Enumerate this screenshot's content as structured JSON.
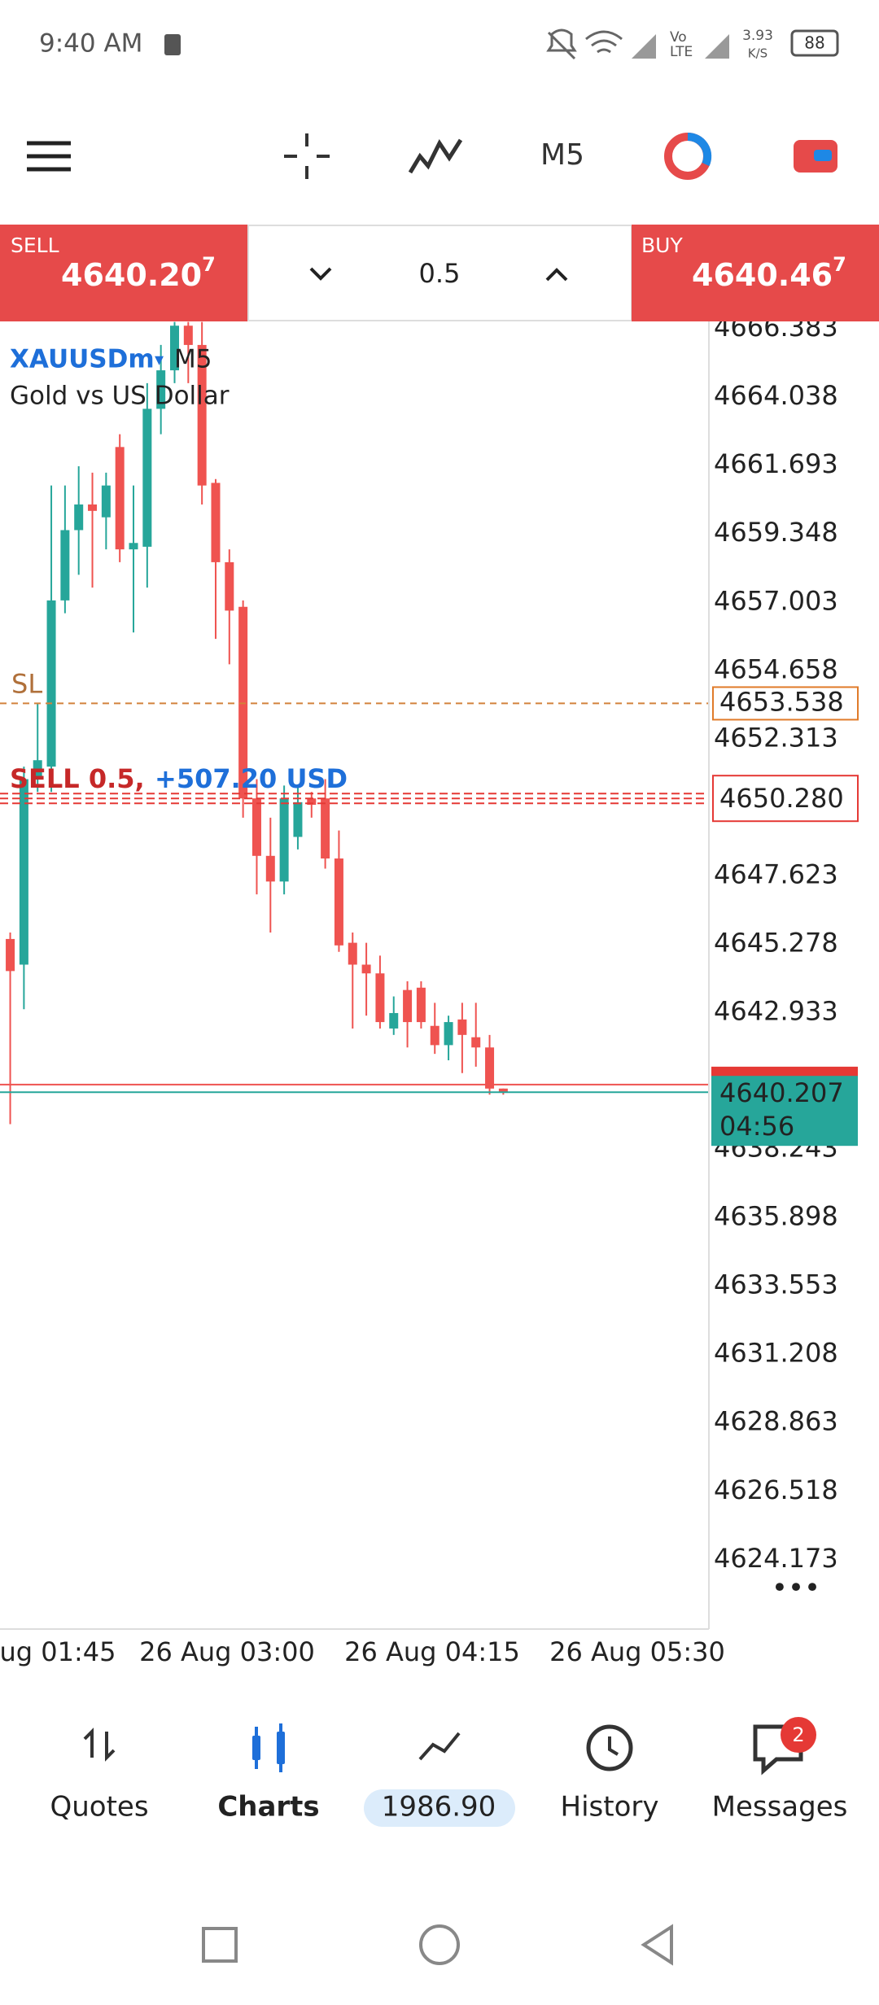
{
  "status_bar": {
    "time": "9:40 AM",
    "speed": "3.93",
    "speed_unit": "K/S",
    "battery": "88"
  },
  "toolbar": {
    "timeframe": "M5"
  },
  "trade_panel": {
    "sell_label": "SELL",
    "sell_price": "4640.20",
    "sell_price_last": "7",
    "volume": "0.5",
    "buy_label": "BUY",
    "buy_price": "4640.46",
    "buy_price_last": "7"
  },
  "chart": {
    "type": "candlestick",
    "symbol": "XAUUSDm",
    "timeframe": "M5",
    "description": "Gold vs US Dollar",
    "up_color": "#26a69a",
    "down_color": "#ef5350",
    "ylim": [
      4621.81,
      4666.62
    ],
    "yticks": [
      4666.383,
      4664.038,
      4661.693,
      4659.348,
      4657.003,
      4654.658,
      4652.313,
      4647.623,
      4645.278,
      4642.933,
      4638.243,
      4635.898,
      4633.553,
      4631.208,
      4628.863,
      4626.518,
      4624.173
    ],
    "x_labels": [
      "ug 01:45",
      "26 Aug 03:00",
      "26 Aug 04:15",
      "26 Aug 05:30"
    ],
    "candles": [
      {
        "open": 4645.46,
        "high": 4645.68,
        "low": 4639.11,
        "close": 4644.36
      },
      {
        "open": 4644.58,
        "high": 4651.37,
        "low": 4643.05,
        "close": 4650.94
      },
      {
        "open": 4650.94,
        "high": 4653.56,
        "low": 4650.5,
        "close": 4651.59
      },
      {
        "open": 4651.37,
        "high": 4661.01,
        "low": 4650.5,
        "close": 4657.07
      },
      {
        "open": 4657.07,
        "high": 4661.01,
        "low": 4656.63,
        "close": 4659.48
      },
      {
        "open": 4659.48,
        "high": 4661.67,
        "low": 4657.95,
        "close": 4660.36
      },
      {
        "open": 4660.36,
        "high": 4661.45,
        "low": 4657.51,
        "close": 4660.14
      },
      {
        "open": 4659.92,
        "high": 4661.45,
        "low": 4658.82,
        "close": 4661.01
      },
      {
        "open": 4662.33,
        "high": 4662.77,
        "low": 4658.38,
        "close": 4658.82
      },
      {
        "open": 4658.82,
        "high": 4661.01,
        "low": 4655.97,
        "close": 4659.04
      },
      {
        "open": 4658.91,
        "high": 4664.52,
        "low": 4657.51,
        "close": 4663.64
      },
      {
        "open": 4663.64,
        "high": 4665.83,
        "low": 4662.77,
        "close": 4664.96
      },
      {
        "open": 4664.96,
        "high": 4666.62,
        "low": 4664.52,
        "close": 4666.49
      },
      {
        "open": 4666.49,
        "high": 4666.62,
        "low": 4664.52,
        "close": 4665.83
      },
      {
        "open": 4665.83,
        "high": 4666.62,
        "low": 4660.36,
        "close": 4661.01
      },
      {
        "open": 4661.1,
        "high": 4661.23,
        "low": 4655.75,
        "close": 4658.38
      },
      {
        "open": 4658.38,
        "high": 4658.82,
        "low": 4654.88,
        "close": 4656.72
      },
      {
        "open": 4656.85,
        "high": 4657.07,
        "low": 4649.62,
        "close": 4650.28
      },
      {
        "open": 4650.28,
        "high": 4650.94,
        "low": 4646.99,
        "close": 4648.31
      },
      {
        "open": 4648.31,
        "high": 4649.62,
        "low": 4645.68,
        "close": 4647.43
      },
      {
        "open": 4647.43,
        "high": 4650.72,
        "low": 4646.99,
        "close": 4650.28
      },
      {
        "open": 4648.96,
        "high": 4650.72,
        "low": 4648.53,
        "close": 4650.15
      },
      {
        "open": 4650.28,
        "high": 4650.5,
        "low": 4649.62,
        "close": 4650.06
      },
      {
        "open": 4650.28,
        "high": 4650.94,
        "low": 4647.87,
        "close": 4648.22
      },
      {
        "open": 4648.22,
        "high": 4649.18,
        "low": 4645.02,
        "close": 4645.24
      },
      {
        "open": 4645.33,
        "high": 4645.68,
        "low": 4642.39,
        "close": 4644.58
      },
      {
        "open": 4644.58,
        "high": 4645.33,
        "low": 4642.83,
        "close": 4644.28
      },
      {
        "open": 4644.28,
        "high": 4644.89,
        "low": 4642.39,
        "close": 4642.61
      },
      {
        "open": 4642.39,
        "high": 4643.49,
        "low": 4642.17,
        "close": 4642.92
      },
      {
        "open": 4643.71,
        "high": 4644.01,
        "low": 4641.74,
        "close": 4642.61
      },
      {
        "open": 4643.79,
        "high": 4644.01,
        "low": 4642.39,
        "close": 4642.61
      },
      {
        "open": 4642.48,
        "high": 4643.27,
        "low": 4641.52,
        "close": 4641.82
      },
      {
        "open": 4641.82,
        "high": 4642.83,
        "low": 4641.3,
        "close": 4642.61
      },
      {
        "open": 4642.7,
        "high": 4643.27,
        "low": 4640.86,
        "close": 4642.17
      },
      {
        "open": 4642.09,
        "high": 4643.27,
        "low": 4641.08,
        "close": 4641.74
      },
      {
        "open": 4641.74,
        "high": 4642.17,
        "low": 4640.12,
        "close": 4640.33
      },
      {
        "open": 4640.33,
        "high": 4640.33,
        "low": 4640.12,
        "close": 4640.21
      }
    ],
    "stop_loss": {
      "label": "SL",
      "value": 4653.538
    },
    "position": {
      "label": "SELL 0.5,",
      "profit": "+507.20 USD",
      "price": {
        "value": 4650.28,
        "label": "4650.280"
      }
    },
    "bid": 4640.207,
    "ask": 4640.467,
    "countdown": "04:56"
  },
  "nav": {
    "items": [
      "Quotes",
      "Charts",
      "1986.90",
      "History",
      "Messages"
    ],
    "badge": "2"
  }
}
